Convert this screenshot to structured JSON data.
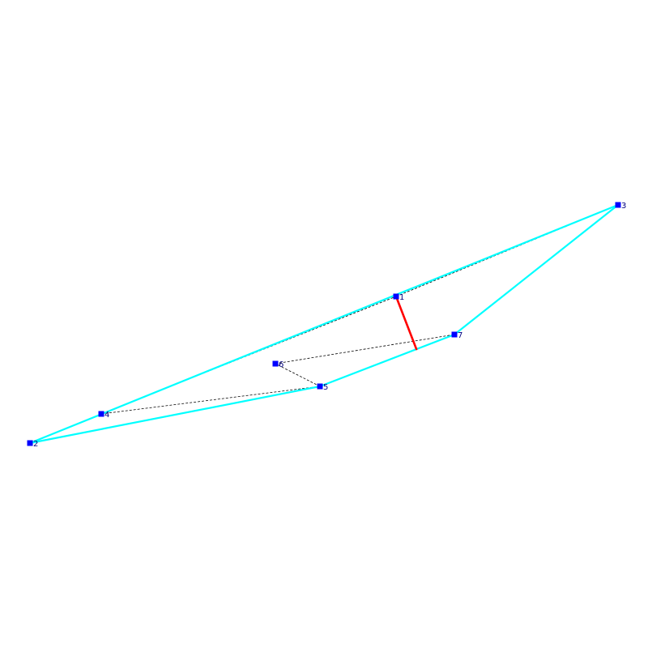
{
  "colors": {
    "hull": "#00ffff",
    "dashed": "#000000",
    "highlight": "#ff0000",
    "point": "#0000ff",
    "label": "#000080"
  },
  "points": [
    {
      "id": "1",
      "label": "1"
    },
    {
      "id": "2",
      "label": "2"
    },
    {
      "id": "3",
      "label": "3"
    },
    {
      "id": "4",
      "label": "4"
    },
    {
      "id": "5",
      "label": "5"
    },
    {
      "id": "6",
      "label": "6"
    },
    {
      "id": "7",
      "label": "7"
    }
  ],
  "hull_edges": [
    [
      "2",
      "3"
    ],
    [
      "3",
      "7"
    ],
    [
      "7",
      "5"
    ],
    [
      "5",
      "2"
    ]
  ],
  "dashed_edges": [
    [
      "4",
      "1"
    ],
    [
      "1",
      "3"
    ],
    [
      "4",
      "5"
    ],
    [
      "5",
      "6"
    ],
    [
      "6",
      "7"
    ]
  ],
  "highlight_edge": {
    "from": "1",
    "to": "edge:7-5"
  }
}
